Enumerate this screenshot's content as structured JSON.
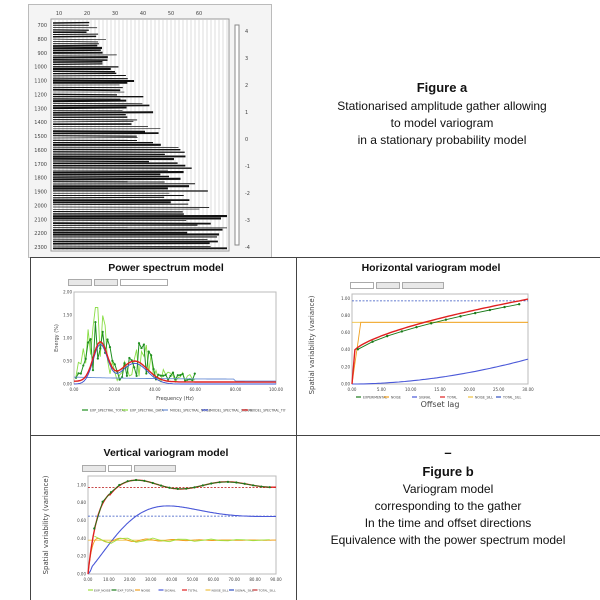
{
  "figure_a": {
    "title": "Figure a",
    "lines": [
      "Stationarised amplitude gather allowing",
      "to model variogram",
      "in a stationary probability model"
    ],
    "gather": {
      "top_ticks": [
        "10",
        "20",
        "30",
        "40",
        "50",
        "60"
      ],
      "left_ticks": [
        "700",
        "800",
        "900",
        "1000",
        "1100",
        "1200",
        "1300",
        "1400",
        "1500",
        "1600",
        "1700",
        "1800",
        "1900",
        "2000",
        "2100",
        "2200",
        "2300"
      ],
      "colorbar_ticks": [
        "4",
        "3",
        "2",
        "1",
        "0",
        "-1",
        "-2",
        "-3",
        "-4"
      ]
    }
  },
  "figure_b": {
    "dash": "–",
    "title": "Figure b",
    "lines": [
      "Variogram model",
      "corresponding to the gather",
      "In the time and offset directions",
      "Equivalence with the power spectrum model"
    ]
  },
  "power_spectrum": {
    "title": "Power spectrum model",
    "ylabel": "Energy (%)",
    "xlabel": "Frequency (Hz)",
    "xticks": [
      "0.00",
      "20.00",
      "40.00",
      "60.00",
      "80.00",
      "100.00"
    ],
    "yticks": [
      "0.00",
      "0.50",
      "1.00",
      "1.50",
      "2.00"
    ],
    "legend": [
      "EXP_SPECTRAL_TOTAL",
      "EXP_SPECTRAL_DATA",
      "MODEL_SPECTRAL_NOISE",
      "MODEL_SPECTRAL_SIGNAL",
      "MODEL_SPECTRAL_TOTAL"
    ],
    "colors": {
      "exp_total": "#1f8f1f",
      "exp_data": "#88dd44",
      "noise": "#6b8fd6",
      "signal": "#3a4fd0",
      "total": "#e02020"
    }
  },
  "horizontal_variogram": {
    "title": "Horizontal variogram model",
    "ylabel": "Spatial variability (variance)",
    "xlabel": "Offset lag",
    "xticks": [
      "0.00",
      "5.00",
      "10.00",
      "15.00",
      "20.00",
      "25.00",
      "30.00"
    ],
    "yticks": [
      "0.00",
      "0.20",
      "0.40",
      "0.60",
      "0.80",
      "1.00"
    ],
    "legend": [
      "EXPERIMENTAL",
      "NOISE",
      "SIGNAL",
      "TOTAL",
      "NOISE_SILL",
      "TOTAL_SILL"
    ],
    "colors": {
      "experimental": "#1a7a1a",
      "noise": "#f0a020",
      "signal": "#4a58d8",
      "total": "#e02020",
      "noise_sill": "#f0c040",
      "total_sill": "#3050c0"
    }
  },
  "vertical_variogram": {
    "title": "Vertical variogram model",
    "ylabel": "Spatial variability (variance)",
    "xticks": [
      "0.00",
      "10.00",
      "20.00",
      "30.00",
      "40.00",
      "50.00",
      "60.00",
      "70.00",
      "80.00",
      "90.00"
    ],
    "yticks": [
      "0.00",
      "0.20",
      "0.40",
      "0.60",
      "0.80",
      "1.00"
    ],
    "legend": [
      "EXP_NOISE",
      "EXP_TOTAL",
      "NOISE",
      "SIGNAL",
      "TOTAL",
      "NOISE_SILL",
      "SIGNAL_SILL",
      "TOTAL_SILL"
    ],
    "colors": {
      "exp_noise": "#a0e040",
      "exp_total": "#1a7a1a",
      "noise": "#f0a020",
      "signal": "#4a58d8",
      "total": "#e02020",
      "noise_sill": "#f0c040",
      "signal_sill": "#3050c0",
      "total_sill": "#c03030"
    }
  }
}
